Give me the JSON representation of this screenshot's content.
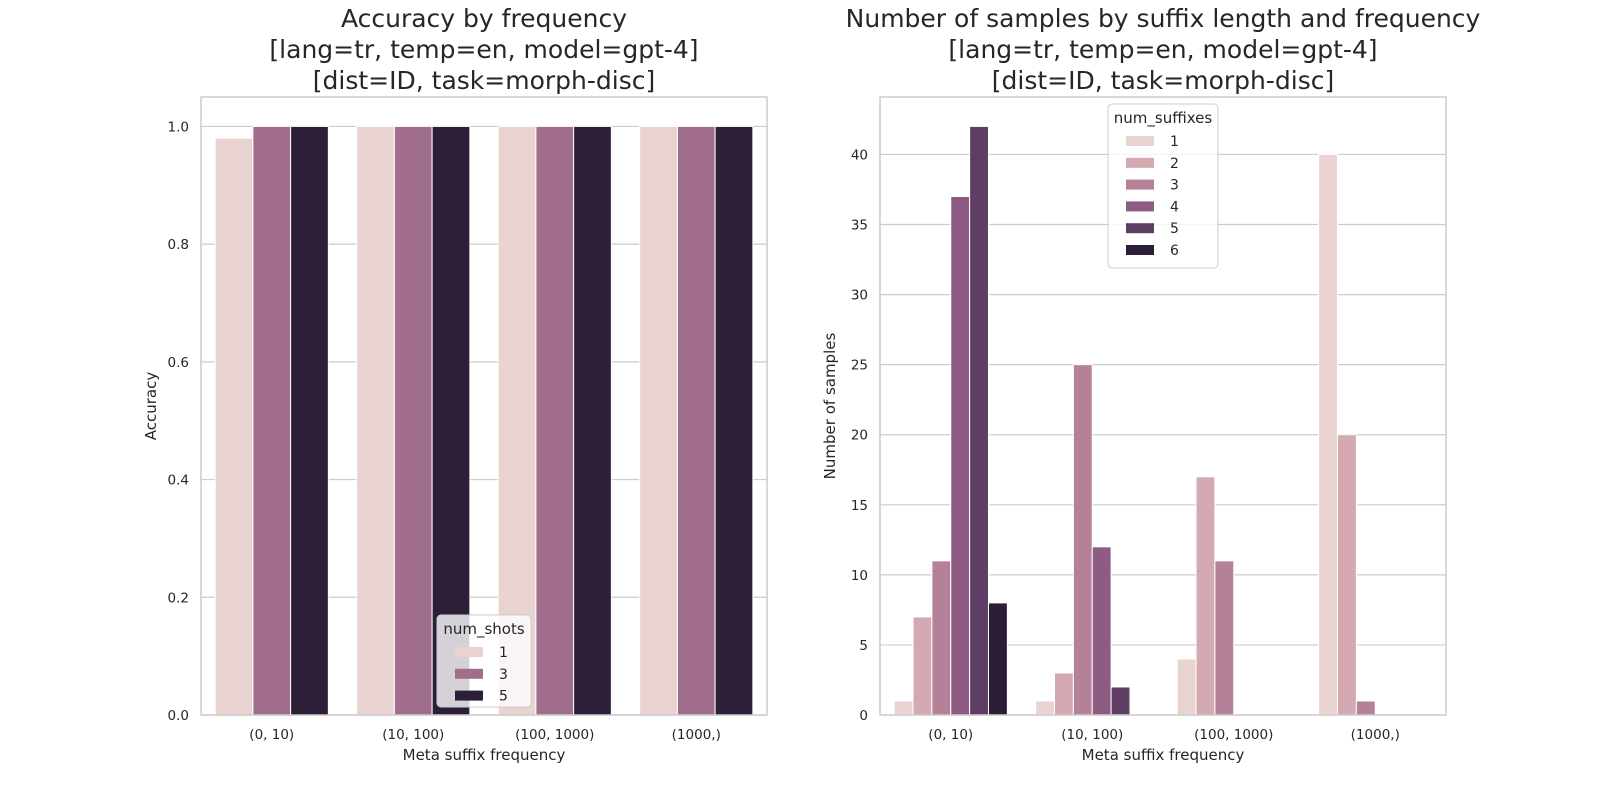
{
  "chart_data": [
    {
      "type": "bar",
      "title": "Accuracy by frequency\n[lang=tr, temp=en, model=gpt-4]\n[dist=ID, task=morph-disc]",
      "xlabel": "Meta suffix frequency",
      "ylabel": "Accuracy",
      "categories": [
        "(0, 10)",
        "(10, 100)",
        "(100, 1000)",
        "(1000,)"
      ],
      "ylim": [
        0,
        1.05
      ],
      "yticks": [
        0.0,
        0.2,
        0.4,
        0.6,
        0.8,
        1.0
      ],
      "ytick_labels": [
        "0.0",
        "0.2",
        "0.4",
        "0.6",
        "0.8",
        "1.0"
      ],
      "grid": true,
      "legend": {
        "title": "num_shots",
        "placement": "lower-center"
      },
      "series": [
        {
          "name": "1",
          "color": "#e8d3d0",
          "values": [
            0.98,
            1.0,
            1.0,
            1.0
          ]
        },
        {
          "name": "3",
          "color": "#a06e8c",
          "values": [
            1.0,
            1.0,
            1.0,
            1.0
          ]
        },
        {
          "name": "5",
          "color": "#2e1f38",
          "values": [
            1.0,
            1.0,
            1.0,
            1.0
          ]
        }
      ]
    },
    {
      "type": "bar",
      "title": "Number of samples by suffix length and frequency\n[lang=tr, temp=en, model=gpt-4]\n[dist=ID, task=morph-disc]",
      "xlabel": "Meta suffix frequency",
      "ylabel": "Number of samples",
      "categories": [
        "(0, 10)",
        "(10, 100)",
        "(100, 1000)",
        "(1000,)"
      ],
      "ylim": [
        0,
        44.1
      ],
      "yticks": [
        0,
        5,
        10,
        15,
        20,
        25,
        30,
        35,
        40
      ],
      "ytick_labels": [
        "0",
        "5",
        "10",
        "15",
        "20",
        "25",
        "30",
        "35",
        "40"
      ],
      "grid": true,
      "legend": {
        "title": "num_suffixes",
        "placement": "upper-center"
      },
      "series": [
        {
          "name": "1",
          "color": "#ead4d1",
          "values": [
            1,
            1,
            4,
            40
          ]
        },
        {
          "name": "2",
          "color": "#d4a9b1",
          "values": [
            7,
            3,
            17,
            20
          ]
        },
        {
          "name": "3",
          "color": "#b58198",
          "values": [
            11,
            25,
            11,
            1
          ]
        },
        {
          "name": "4",
          "color": "#8e5c83",
          "values": [
            37,
            12,
            0,
            0
          ]
        },
        {
          "name": "5",
          "color": "#5f3e66",
          "values": [
            42,
            2,
            0,
            0
          ]
        },
        {
          "name": "6",
          "color": "#2d1e37",
          "values": [
            8,
            0,
            0,
            0
          ]
        }
      ]
    }
  ]
}
